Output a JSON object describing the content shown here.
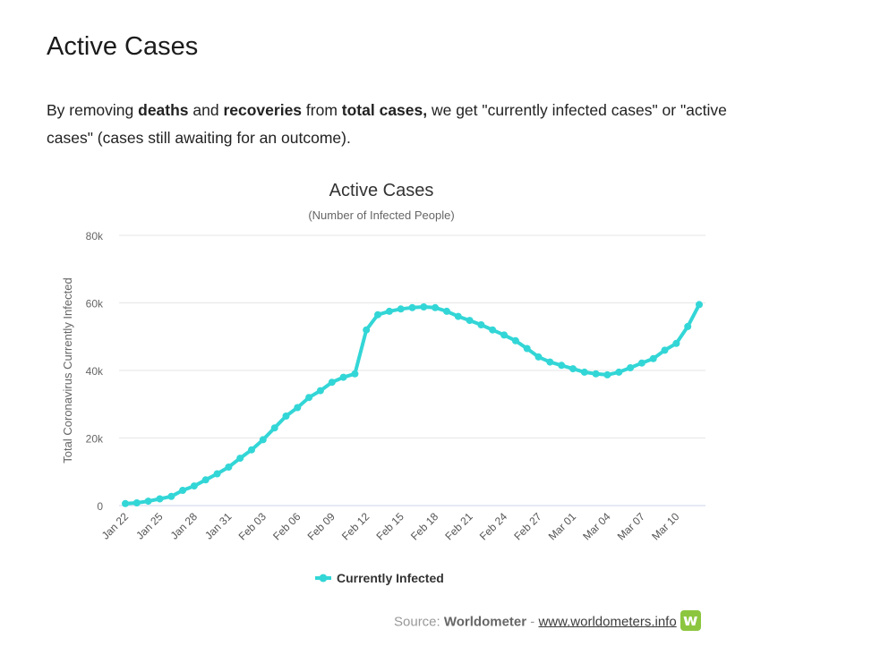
{
  "page": {
    "title": "Active Cases",
    "intro": {
      "part1": "By removing ",
      "bold1": "deaths",
      "part2": " and ",
      "bold2": "recoveries",
      "part3": " from ",
      "bold3": "total cases,",
      "part4": " we get \"currently infected cases\" or \"active cases\" (cases still awaiting for an outcome)."
    }
  },
  "chart_data": {
    "type": "line",
    "title": "Active Cases",
    "subtitle": "(Number of Infected People)",
    "xlabel": "",
    "ylabel": "Total Coronavirus Currently Infected",
    "ylim": [
      0,
      80000
    ],
    "yticks": [
      0,
      20000,
      40000,
      60000,
      80000
    ],
    "ytick_labels": [
      "0",
      "20k",
      "40k",
      "60k",
      "80k"
    ],
    "grid": true,
    "legend": "bottom-center",
    "x": [
      "Jan 22",
      "Jan 23",
      "Jan 24",
      "Jan 25",
      "Jan 26",
      "Jan 27",
      "Jan 28",
      "Jan 29",
      "Jan 30",
      "Jan 31",
      "Feb 01",
      "Feb 02",
      "Feb 03",
      "Feb 04",
      "Feb 05",
      "Feb 06",
      "Feb 07",
      "Feb 08",
      "Feb 09",
      "Feb 10",
      "Feb 11",
      "Feb 12",
      "Feb 13",
      "Feb 14",
      "Feb 15",
      "Feb 16",
      "Feb 17",
      "Feb 18",
      "Feb 19",
      "Feb 20",
      "Feb 21",
      "Feb 22",
      "Feb 23",
      "Feb 24",
      "Feb 25",
      "Feb 26",
      "Feb 27",
      "Feb 28",
      "Feb 29",
      "Mar 01",
      "Mar 02",
      "Mar 03",
      "Mar 04",
      "Mar 05",
      "Mar 06",
      "Mar 07",
      "Mar 08",
      "Mar 09",
      "Mar 10",
      "Mar 11",
      "Mar 12"
    ],
    "xtick_labels": [
      "Jan 22",
      "Jan 25",
      "Jan 28",
      "Jan 31",
      "Feb 03",
      "Feb 06",
      "Feb 09",
      "Feb 12",
      "Feb 15",
      "Feb 18",
      "Feb 21",
      "Feb 24",
      "Feb 27",
      "Mar 01",
      "Mar 04",
      "Mar 07",
      "Mar 10"
    ],
    "series": [
      {
        "name": "Currently Infected",
        "color": "#33d6d6",
        "values": [
          580,
          800,
          1300,
          2000,
          2700,
          4500,
          5800,
          7600,
          9400,
          11400,
          14000,
          16500,
          19500,
          23000,
          26500,
          29000,
          32000,
          34000,
          36500,
          38000,
          39000,
          52000,
          56500,
          57500,
          58200,
          58600,
          58800,
          58600,
          57500,
          56000,
          54800,
          53500,
          52000,
          50500,
          48800,
          46500,
          44000,
          42500,
          41500,
          40500,
          39500,
          39000,
          38700,
          39500,
          40800,
          42200,
          43500,
          46000,
          48000,
          53000,
          59500
        ]
      }
    ]
  },
  "source": {
    "label": "Source:",
    "brand": "Worldometer",
    "sep": "-",
    "link": "www.worldometers.info",
    "logo_letter": "w"
  }
}
